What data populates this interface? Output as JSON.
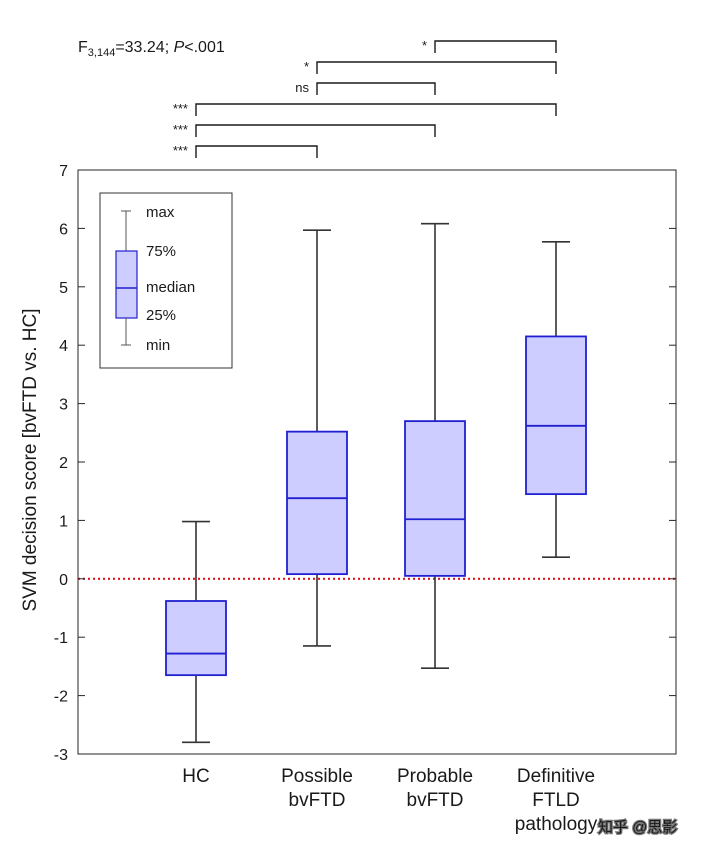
{
  "chart_data": {
    "type": "box",
    "ylabel": "SVM decision score [bvFTD vs. HC]",
    "ylim": [
      -3,
      7
    ],
    "yticks": [
      -3,
      -2,
      -1,
      0,
      1,
      2,
      3,
      4,
      5,
      6,
      7
    ],
    "reference_line": {
      "y": 0,
      "color": "#e0141e",
      "style": "dotted"
    },
    "statistic": {
      "prefix": "F",
      "subscript": "3,144",
      "value_text": "=33.24; ",
      "p_symbol": "P",
      "p_text": "<.001"
    },
    "categories": [
      {
        "lines": [
          "HC"
        ],
        "min": -2.8,
        "q1": -1.65,
        "median": -1.28,
        "q3": -0.38,
        "max": 0.98
      },
      {
        "lines": [
          "Possible",
          "bvFTD"
        ],
        "min": -1.15,
        "q1": 0.08,
        "median": 1.38,
        "q3": 2.52,
        "max": 5.97
      },
      {
        "lines": [
          "Probable",
          "bvFTD"
        ],
        "min": -1.53,
        "q1": 0.05,
        "median": 1.02,
        "q3": 2.7,
        "max": 6.08
      },
      {
        "lines": [
          "Definitive",
          "FTLD",
          "pathology"
        ],
        "min": 0.37,
        "q1": 1.45,
        "median": 2.62,
        "q3": 4.15,
        "max": 5.77
      }
    ],
    "comparisons": [
      {
        "from": 3,
        "to": 4,
        "label": "*"
      },
      {
        "from": 2,
        "to": 4,
        "label": "*"
      },
      {
        "from": 2,
        "to": 3,
        "label": "ns"
      },
      {
        "from": 1,
        "to": 4,
        "label": "***"
      },
      {
        "from": 1,
        "to": 3,
        "label": "***"
      },
      {
        "from": 1,
        "to": 2,
        "label": "***"
      }
    ],
    "legend": {
      "position": "top-left",
      "max": "max",
      "q3": "75%",
      "median": "median",
      "q1": "25%",
      "min": "min"
    },
    "colors": {
      "box_fill": "#cdcdff",
      "box_stroke": "#2020d0",
      "whisker": "#333333",
      "bracket": "#1a1a1a"
    }
  },
  "watermark": "知乎 @思影"
}
